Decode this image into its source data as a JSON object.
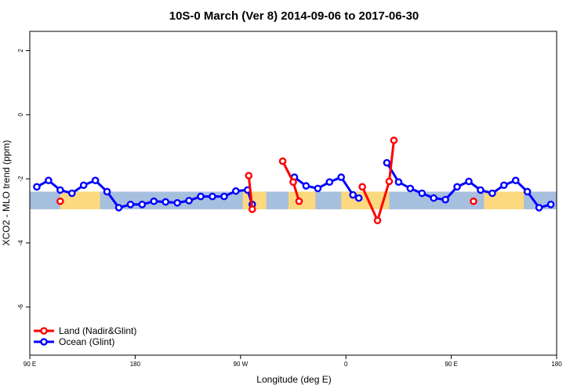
{
  "chart_data": {
    "type": "line",
    "title": "10S-0 March (Ver 8)   2014-09-06 to 2017-06-30",
    "xlabel": "Longitude (deg E)",
    "ylabel": "XCO2 - MLO trend (ppm)",
    "xlim": [
      90,
      540
    ],
    "ylim": [
      -7.5,
      2.6
    ],
    "x_ticks": [
      {
        "value": 90,
        "label": "90 E"
      },
      {
        "value": 180,
        "label": "180"
      },
      {
        "value": 270,
        "label": "90 W"
      },
      {
        "value": 360,
        "label": "0"
      },
      {
        "value": 450,
        "label": "90 E"
      },
      {
        "value": 540,
        "label": "180"
      }
    ],
    "y_ticks": [
      {
        "value": 2,
        "label": "2"
      },
      {
        "value": 0,
        "label": "0"
      },
      {
        "value": -2,
        "label": "-2"
      },
      {
        "value": -4,
        "label": "-4"
      },
      {
        "value": -6,
        "label": "-6"
      }
    ],
    "background_band": {
      "ymin": -2.95,
      "ymax": -2.4,
      "ocean_color": "#a7bfde",
      "land_color": "#fcd97e"
    },
    "land_ranges": [
      [
        116,
        150
      ],
      [
        272,
        292
      ],
      [
        311,
        334
      ],
      [
        356,
        397
      ],
      [
        478,
        512
      ]
    ],
    "series": [
      {
        "name": "Land (Nadir&Glint)",
        "color": "#ff0000",
        "segments": [
          [
            [
              116,
              -2.7
            ]
          ],
          [
            [
              277,
              -1.9
            ],
            [
              280,
              -2.95
            ]
          ],
          [
            [
              306,
              -1.45
            ],
            [
              315,
              -2.1
            ],
            [
              320,
              -2.7
            ]
          ],
          [
            [
              374,
              -2.25
            ],
            [
              387,
              -3.3
            ],
            [
              397,
              -2.08
            ],
            [
              401,
              -0.8
            ]
          ],
          [
            [
              469,
              -2.7
            ]
          ]
        ]
      },
      {
        "name": "Ocean (Glint)",
        "color": "#0000ff",
        "segments": [
          [
            [
              96,
              -2.25
            ],
            [
              106,
              -2.05
            ],
            [
              116,
              -2.35
            ],
            [
              126,
              -2.45
            ],
            [
              136,
              -2.2
            ],
            [
              146,
              -2.05
            ],
            [
              156,
              -2.4
            ],
            [
              166,
              -2.9
            ],
            [
              176,
              -2.8
            ],
            [
              186,
              -2.8
            ],
            [
              196,
              -2.7
            ],
            [
              206,
              -2.72
            ],
            [
              216,
              -2.75
            ],
            [
              226,
              -2.68
            ],
            [
              236,
              -2.55
            ],
            [
              246,
              -2.55
            ],
            [
              256,
              -2.55
            ],
            [
              266,
              -2.38
            ],
            [
              276,
              -2.35
            ],
            [
              280,
              -2.8
            ]
          ],
          [
            [
              316,
              -1.95
            ],
            [
              326,
              -2.22
            ],
            [
              336,
              -2.3
            ],
            [
              346,
              -2.1
            ],
            [
              356,
              -1.95
            ],
            [
              366,
              -2.5
            ],
            [
              371,
              -2.6
            ]
          ],
          [
            [
              395,
              -1.5
            ],
            [
              405,
              -2.1
            ],
            [
              415,
              -2.3
            ],
            [
              425,
              -2.45
            ],
            [
              435,
              -2.6
            ],
            [
              445,
              -2.65
            ],
            [
              455,
              -2.25
            ],
            [
              465,
              -2.08
            ],
            [
              475,
              -2.35
            ],
            [
              485,
              -2.45
            ],
            [
              495,
              -2.2
            ],
            [
              505,
              -2.05
            ],
            [
              515,
              -2.4
            ],
            [
              525,
              -2.9
            ],
            [
              535,
              -2.8
            ]
          ]
        ]
      }
    ],
    "legend": {
      "position": "bottom-left",
      "entries": [
        {
          "label": "Land (Nadir&Glint)",
          "color": "#ff0000"
        },
        {
          "label": "Ocean (Glint)",
          "color": "#0000ff"
        }
      ]
    },
    "grid": false
  }
}
